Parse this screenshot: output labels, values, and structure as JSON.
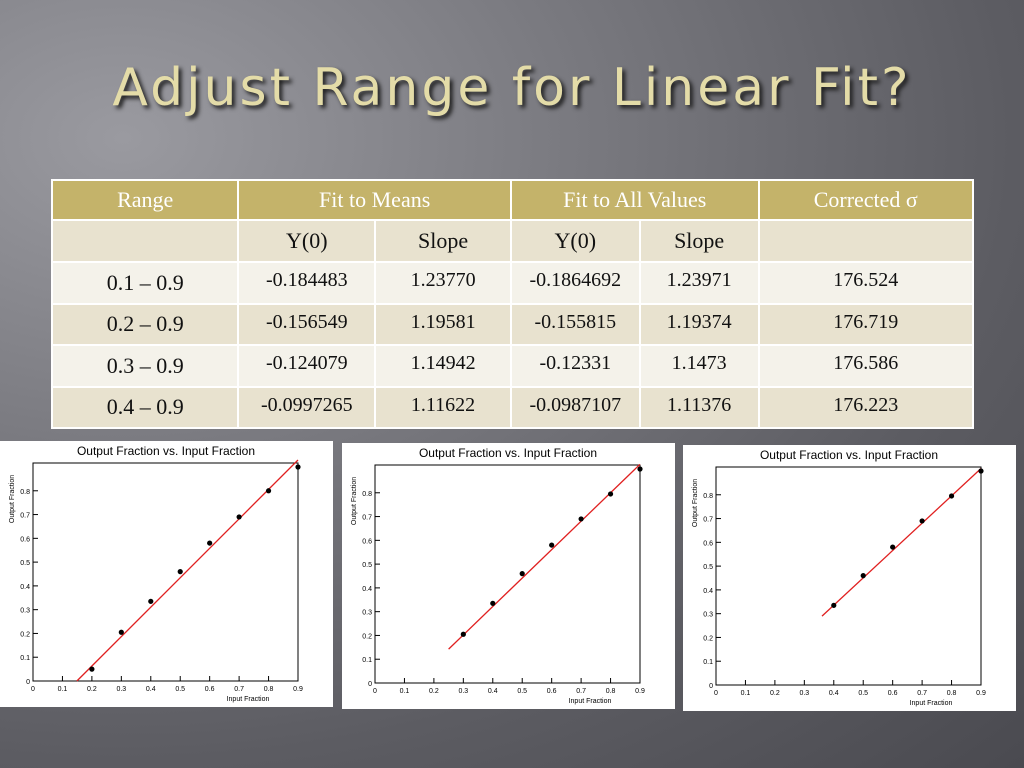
{
  "slide": {
    "title": "Adjust Range for Linear Fit?"
  },
  "table": {
    "headers": [
      "Range",
      "Fit to Means",
      "Fit to All Values",
      "Corrected σ"
    ],
    "subheaders": [
      "Y(0)",
      "Slope",
      "Y(0)",
      "Slope"
    ],
    "rows": [
      {
        "range": "0.1 – 0.9",
        "means_y0": "-0.184483",
        "means_slope": "1.23770",
        "all_y0": "-0.1864692",
        "all_slope": "1.23971",
        "sigma": "176.524"
      },
      {
        "range": "0.2 – 0.9",
        "means_y0": "-0.156549",
        "means_slope": "1.19581",
        "all_y0": "-0.155815",
        "all_slope": "1.19374",
        "sigma": "176.719"
      },
      {
        "range": "0.3 – 0.9",
        "means_y0": "-0.124079",
        "means_slope": "1.14942",
        "all_y0": "-0.12331",
        "all_slope": "1.1473",
        "sigma": "176.586"
      },
      {
        "range": "0.4 – 0.9",
        "means_y0": "-0.0997265",
        "means_slope": "1.11622",
        "all_y0": "-0.0987107",
        "all_slope": "1.11376",
        "sigma": "176.223"
      }
    ]
  },
  "chart_data": [
    {
      "type": "scatter",
      "title": "Output Fraction vs. Input Fraction",
      "xlabel": "Input Fraction",
      "ylabel": "Output Fraction",
      "xlim": [
        0,
        0.9
      ],
      "ylim": [
        0,
        0.9
      ],
      "xticks": [
        "0",
        "0.1",
        "0.2",
        "0.3",
        "0.4",
        "0.5",
        "0.6",
        "0.7",
        "0.8",
        "0.9"
      ],
      "yticks": [
        "0",
        "0.1",
        "0.2",
        "0.3",
        "0.4",
        "0.5",
        "0.6",
        "0.7",
        "0.8"
      ],
      "x": [
        0.2,
        0.3,
        0.4,
        0.5,
        0.6,
        0.7,
        0.8,
        0.9
      ],
      "y": [
        0.05,
        0.205,
        0.335,
        0.46,
        0.58,
        0.69,
        0.8,
        0.9
      ],
      "fit": {
        "y0": -0.184483,
        "slope": 1.2377,
        "x_start": 0.149,
        "x_end": 0.9,
        "color": "#e02020"
      },
      "point_color": "#000000"
    },
    {
      "type": "scatter",
      "title": "Output Fraction vs. Input Fraction",
      "xlabel": "Input Fraction",
      "ylabel": "Output Fraction",
      "xlim": [
        0,
        0.9
      ],
      "ylim": [
        0,
        0.9
      ],
      "xticks": [
        "0",
        "0.1",
        "0.2",
        "0.3",
        "0.4",
        "0.5",
        "0.6",
        "0.7",
        "0.8",
        "0.9"
      ],
      "yticks": [
        "0",
        "0.1",
        "0.2",
        "0.3",
        "0.4",
        "0.5",
        "0.6",
        "0.7",
        "0.8"
      ],
      "x": [
        0.3,
        0.4,
        0.5,
        0.6,
        0.7,
        0.8,
        0.9
      ],
      "y": [
        0.205,
        0.335,
        0.46,
        0.58,
        0.69,
        0.795,
        0.9
      ],
      "fit": {
        "y0": -0.156549,
        "slope": 1.19581,
        "x_start": 0.25,
        "x_end": 0.9,
        "color": "#e02020"
      },
      "point_color": "#000000"
    },
    {
      "type": "scatter",
      "title": "Output Fraction vs. Input Fraction",
      "xlabel": "Input Fraction",
      "ylabel": "Output Fraction",
      "xlim": [
        0,
        0.9
      ],
      "ylim": [
        0,
        0.9
      ],
      "xticks": [
        "0",
        "0.1",
        "0.2",
        "0.3",
        "0.4",
        "0.5",
        "0.6",
        "0.7",
        "0.8",
        "0.9"
      ],
      "yticks": [
        "0",
        "0.1",
        "0.2",
        "0.3",
        "0.4",
        "0.5",
        "0.6",
        "0.7",
        "0.8"
      ],
      "x": [
        0.4,
        0.5,
        0.6,
        0.7,
        0.8,
        0.9
      ],
      "y": [
        0.335,
        0.46,
        0.58,
        0.69,
        0.795,
        0.9
      ],
      "fit": {
        "y0": -0.124079,
        "slope": 1.14942,
        "x_start": 0.36,
        "x_end": 0.9,
        "color": "#e02020"
      },
      "point_color": "#000000"
    }
  ]
}
